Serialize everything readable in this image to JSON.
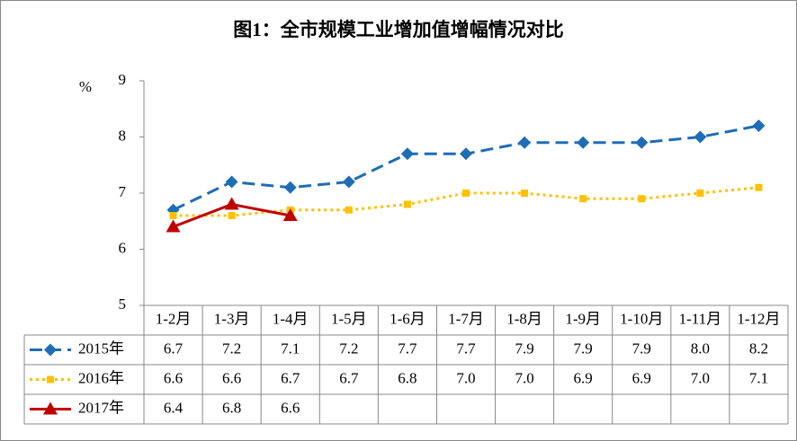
{
  "chart_data": {
    "type": "line",
    "title": "图1：全市规模工业增加值增幅情况对比",
    "y_label": "%",
    "categories": [
      "1-2月",
      "1-3月",
      "1-4月",
      "1-5月",
      "1-6月",
      "1-7月",
      "1-8月",
      "1-9月",
      "1-10月",
      "1-11月",
      "1-12月"
    ],
    "series": [
      {
        "name": "2015年",
        "color": "#1f6db5",
        "dash": "dashed",
        "marker": "diamond",
        "values": [
          6.7,
          7.2,
          7.1,
          7.2,
          7.7,
          7.7,
          7.9,
          7.9,
          7.9,
          8,
          8.2
        ],
        "value_labels": [
          "6.7",
          "7.2",
          "7.1",
          "7.2",
          "7.7",
          "7.7",
          "7.9",
          "7.9",
          "7.9",
          "8.0",
          "8.2"
        ]
      },
      {
        "name": "2016年",
        "color": "#ffc000",
        "dash": "dotted",
        "marker": "square",
        "values": [
          6.6,
          6.6,
          6.7,
          6.7,
          6.8,
          7,
          7,
          6.9,
          6.9,
          7,
          7.1
        ],
        "value_labels": [
          "6.6",
          "6.6",
          "6.7",
          "6.7",
          "6.8",
          "7.0",
          "7.0",
          "6.9",
          "6.9",
          "7.0",
          "7.1"
        ]
      },
      {
        "name": "2017年",
        "color": "#c00000",
        "dash": "solid",
        "marker": "triangle",
        "values": [
          6.4,
          6.8,
          6.6,
          null,
          null,
          null,
          null,
          null,
          null,
          null,
          null
        ],
        "value_labels": [
          "6.4",
          "6.8",
          "6.6",
          null,
          null,
          null,
          null,
          null,
          null,
          null,
          null
        ]
      }
    ],
    "ylim": [
      5,
      9
    ],
    "yticks": [
      5,
      6,
      7,
      8,
      9
    ],
    "grid": false
  }
}
